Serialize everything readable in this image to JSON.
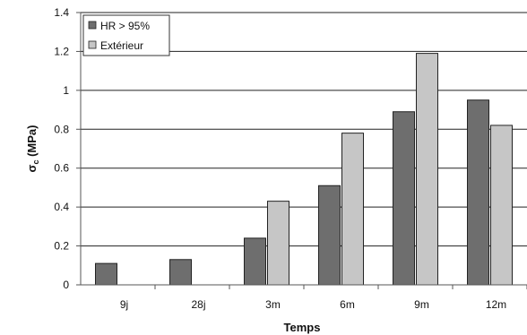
{
  "chart_data": {
    "type": "bar",
    "title": "",
    "xlabel": "Temps",
    "ylabel": "σ",
    "ylabel_sub": "c",
    "ylabel_unit": " (MPa)",
    "categories": [
      "9j",
      "28j",
      "3m",
      "6m",
      "9m",
      "12m"
    ],
    "series": [
      {
        "name": "HR > 95%",
        "color": "#6e6e6e",
        "values": [
          0.11,
          0.13,
          0.24,
          0.51,
          0.89,
          0.95
        ]
      },
      {
        "name": "Extérieur",
        "color": "#c6c6c6",
        "values": [
          null,
          null,
          0.43,
          0.78,
          1.19,
          0.82
        ]
      }
    ],
    "ylim": [
      0,
      1.4
    ],
    "yticks": [
      "0",
      "0.2",
      "0.4",
      "0.6",
      "0.8",
      "1",
      "1.2",
      "1.4"
    ],
    "grid": true,
    "legend": "top-left"
  }
}
